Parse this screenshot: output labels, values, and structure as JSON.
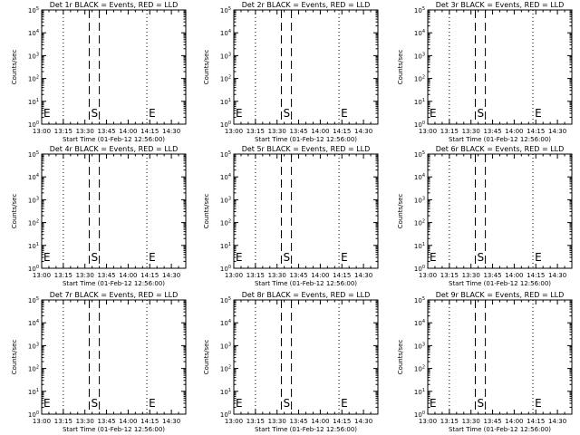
{
  "figure": {
    "background": "#ffffff",
    "foreground": "#000000"
  },
  "chart_data": [
    {
      "type": "line",
      "title": "Det 1r BLACK = Events, RED = LLD",
      "xlabel": "Start Time (01-Feb-12 12:56:00)",
      "ylabel": "Counts/sec",
      "x_ticks": [
        "13:00",
        "13:15",
        "13:30",
        "13:45",
        "14:00",
        "14:15",
        "14:30"
      ],
      "y_ticks": [
        "10^0",
        "10^1",
        "10^2",
        "10^3",
        "10^4",
        "10^5"
      ],
      "y_scale": "log",
      "ylim": [
        1,
        100000
      ],
      "xlim": [
        "13:00",
        "14:40"
      ],
      "markers": [
        {
          "label": "E",
          "x": "13:00",
          "style": "dotted"
        },
        {
          "label": "",
          "x": "13:15",
          "style": "dotted"
        },
        {
          "label": "S",
          "x": "13:33",
          "style": "dashed"
        },
        {
          "label": "",
          "x": "13:40",
          "style": "dashed"
        },
        {
          "label": "E",
          "x": "14:13",
          "style": "dotted"
        },
        {
          "label": "",
          "x": "14:40",
          "style": "dotted"
        }
      ],
      "series": []
    },
    {
      "type": "line",
      "title": "Det 2r BLACK = Events, RED = LLD",
      "xlabel": "Start Time (01-Feb-12 12:56:00)",
      "ylabel": "Counts/sec",
      "x_ticks": [
        "13:00",
        "13:15",
        "13:30",
        "13:45",
        "14:00",
        "14:15",
        "14:30"
      ],
      "y_ticks": [
        "10^0",
        "10^1",
        "10^2",
        "10^3",
        "10^4",
        "10^5"
      ],
      "y_scale": "log",
      "ylim": [
        1,
        100000
      ],
      "xlim": [
        "13:00",
        "14:40"
      ],
      "markers": [
        {
          "label": "E",
          "x": "13:00",
          "style": "dotted"
        },
        {
          "label": "",
          "x": "13:15",
          "style": "dotted"
        },
        {
          "label": "S",
          "x": "13:33",
          "style": "dashed"
        },
        {
          "label": "",
          "x": "13:40",
          "style": "dashed"
        },
        {
          "label": "E",
          "x": "14:13",
          "style": "dotted"
        },
        {
          "label": "",
          "x": "14:40",
          "style": "dotted"
        }
      ],
      "series": []
    },
    {
      "type": "line",
      "title": "Det 3r BLACK = Events, RED = LLD",
      "xlabel": "Start Time (01-Feb-12 12:56:00)",
      "ylabel": "Counts/sec",
      "x_ticks": [
        "13:00",
        "13:15",
        "13:30",
        "13:45",
        "14:00",
        "14:15",
        "14:30"
      ],
      "y_ticks": [
        "10^0",
        "10^1",
        "10^2",
        "10^3",
        "10^4",
        "10^5"
      ],
      "y_scale": "log",
      "ylim": [
        1,
        100000
      ],
      "xlim": [
        "13:00",
        "14:40"
      ],
      "markers": [
        {
          "label": "E",
          "x": "13:00",
          "style": "dotted"
        },
        {
          "label": "",
          "x": "13:15",
          "style": "dotted"
        },
        {
          "label": "S",
          "x": "13:33",
          "style": "dashed"
        },
        {
          "label": "",
          "x": "13:40",
          "style": "dashed"
        },
        {
          "label": "E",
          "x": "14:13",
          "style": "dotted"
        },
        {
          "label": "",
          "x": "14:40",
          "style": "dotted"
        }
      ],
      "series": []
    },
    {
      "type": "line",
      "title": "Det 4r BLACK = Events, RED = LLD",
      "xlabel": "Start Time (01-Feb-12 12:56:00)",
      "ylabel": "Counts/sec",
      "x_ticks": [
        "13:00",
        "13:15",
        "13:30",
        "13:45",
        "14:00",
        "14:15",
        "14:30"
      ],
      "y_ticks": [
        "10^0",
        "10^1",
        "10^2",
        "10^3",
        "10^4",
        "10^5"
      ],
      "y_scale": "log",
      "ylim": [
        1,
        100000
      ],
      "xlim": [
        "13:00",
        "14:40"
      ],
      "markers": [
        {
          "label": "E",
          "x": "13:00",
          "style": "dotted"
        },
        {
          "label": "",
          "x": "13:15",
          "style": "dotted"
        },
        {
          "label": "S",
          "x": "13:33",
          "style": "dashed"
        },
        {
          "label": "",
          "x": "13:40",
          "style": "dashed"
        },
        {
          "label": "E",
          "x": "14:13",
          "style": "dotted"
        },
        {
          "label": "",
          "x": "14:40",
          "style": "dotted"
        }
      ],
      "series": []
    },
    {
      "type": "line",
      "title": "Det 5r BLACK = Events, RED = LLD",
      "xlabel": "Start Time (01-Feb-12 12:56:00)",
      "ylabel": "Counts/sec",
      "x_ticks": [
        "13:00",
        "13:15",
        "13:30",
        "13:45",
        "14:00",
        "14:15",
        "14:30"
      ],
      "y_ticks": [
        "10^0",
        "10^1",
        "10^2",
        "10^3",
        "10^4",
        "10^5"
      ],
      "y_scale": "log",
      "ylim": [
        1,
        100000
      ],
      "xlim": [
        "13:00",
        "14:40"
      ],
      "markers": [
        {
          "label": "E",
          "x": "13:00",
          "style": "dotted"
        },
        {
          "label": "",
          "x": "13:15",
          "style": "dotted"
        },
        {
          "label": "S",
          "x": "13:33",
          "style": "dashed"
        },
        {
          "label": "",
          "x": "13:40",
          "style": "dashed"
        },
        {
          "label": "E",
          "x": "14:13",
          "style": "dotted"
        },
        {
          "label": "",
          "x": "14:40",
          "style": "dotted"
        }
      ],
      "series": []
    },
    {
      "type": "line",
      "title": "Det 6r BLACK = Events, RED = LLD",
      "xlabel": "Start Time (01-Feb-12 12:56:00)",
      "ylabel": "Counts/sec",
      "x_ticks": [
        "13:00",
        "13:15",
        "13:30",
        "13:45",
        "14:00",
        "14:15",
        "14:30"
      ],
      "y_ticks": [
        "10^0",
        "10^1",
        "10^2",
        "10^3",
        "10^4",
        "10^5"
      ],
      "y_scale": "log",
      "ylim": [
        1,
        100000
      ],
      "xlim": [
        "13:00",
        "14:40"
      ],
      "markers": [
        {
          "label": "E",
          "x": "13:00",
          "style": "dotted"
        },
        {
          "label": "",
          "x": "13:15",
          "style": "dotted"
        },
        {
          "label": "S",
          "x": "13:33",
          "style": "dashed"
        },
        {
          "label": "",
          "x": "13:40",
          "style": "dashed"
        },
        {
          "label": "E",
          "x": "14:13",
          "style": "dotted"
        },
        {
          "label": "",
          "x": "14:40",
          "style": "dotted"
        }
      ],
      "series": []
    },
    {
      "type": "line",
      "title": "Det 7r BLACK = Events, RED = LLD",
      "xlabel": "Start Time (01-Feb-12 12:56:00)",
      "ylabel": "Counts/sec",
      "x_ticks": [
        "13:00",
        "13:15",
        "13:30",
        "13:45",
        "14:00",
        "14:15",
        "14:30"
      ],
      "y_ticks": [
        "10^0",
        "10^1",
        "10^2",
        "10^3",
        "10^4",
        "10^5"
      ],
      "y_scale": "log",
      "ylim": [
        1,
        100000
      ],
      "xlim": [
        "13:00",
        "14:40"
      ],
      "markers": [
        {
          "label": "E",
          "x": "13:00",
          "style": "dotted"
        },
        {
          "label": "",
          "x": "13:15",
          "style": "dotted"
        },
        {
          "label": "S",
          "x": "13:33",
          "style": "dashed"
        },
        {
          "label": "",
          "x": "13:40",
          "style": "dashed"
        },
        {
          "label": "E",
          "x": "14:13",
          "style": "dotted"
        },
        {
          "label": "",
          "x": "14:40",
          "style": "dotted"
        }
      ],
      "series": []
    },
    {
      "type": "line",
      "title": "Det 8r BLACK = Events, RED = LLD",
      "xlabel": "Start Time (01-Feb-12 12:56:00)",
      "ylabel": "Counts/sec",
      "x_ticks": [
        "13:00",
        "13:15",
        "13:30",
        "13:45",
        "14:00",
        "14:15",
        "14:30"
      ],
      "y_ticks": [
        "10^0",
        "10^1",
        "10^2",
        "10^3",
        "10^4",
        "10^5"
      ],
      "y_scale": "log",
      "ylim": [
        1,
        100000
      ],
      "xlim": [
        "13:00",
        "14:40"
      ],
      "markers": [
        {
          "label": "E",
          "x": "13:00",
          "style": "dotted"
        },
        {
          "label": "",
          "x": "13:15",
          "style": "dotted"
        },
        {
          "label": "S",
          "x": "13:33",
          "style": "dashed"
        },
        {
          "label": "",
          "x": "13:40",
          "style": "dashed"
        },
        {
          "label": "E",
          "x": "14:13",
          "style": "dotted"
        },
        {
          "label": "",
          "x": "14:40",
          "style": "dotted"
        }
      ],
      "series": []
    },
    {
      "type": "line",
      "title": "Det 9r BLACK = Events, RED = LLD",
      "xlabel": "Start Time (01-Feb-12 12:56:00)",
      "ylabel": "Counts/sec",
      "x_ticks": [
        "13:00",
        "13:15",
        "13:30",
        "13:45",
        "14:00",
        "14:15",
        "14:30"
      ],
      "y_ticks": [
        "10^0",
        "10^1",
        "10^2",
        "10^3",
        "10^4",
        "10^5"
      ],
      "y_scale": "log",
      "ylim": [
        1,
        100000
      ],
      "xlim": [
        "13:00",
        "14:40"
      ],
      "markers": [
        {
          "label": "E",
          "x": "13:00",
          "style": "dotted"
        },
        {
          "label": "",
          "x": "13:15",
          "style": "dotted"
        },
        {
          "label": "S",
          "x": "13:33",
          "style": "dashed"
        },
        {
          "label": "",
          "x": "13:40",
          "style": "dashed"
        },
        {
          "label": "E",
          "x": "14:13",
          "style": "dotted"
        },
        {
          "label": "",
          "x": "14:40",
          "style": "dotted"
        }
      ],
      "series": []
    }
  ]
}
